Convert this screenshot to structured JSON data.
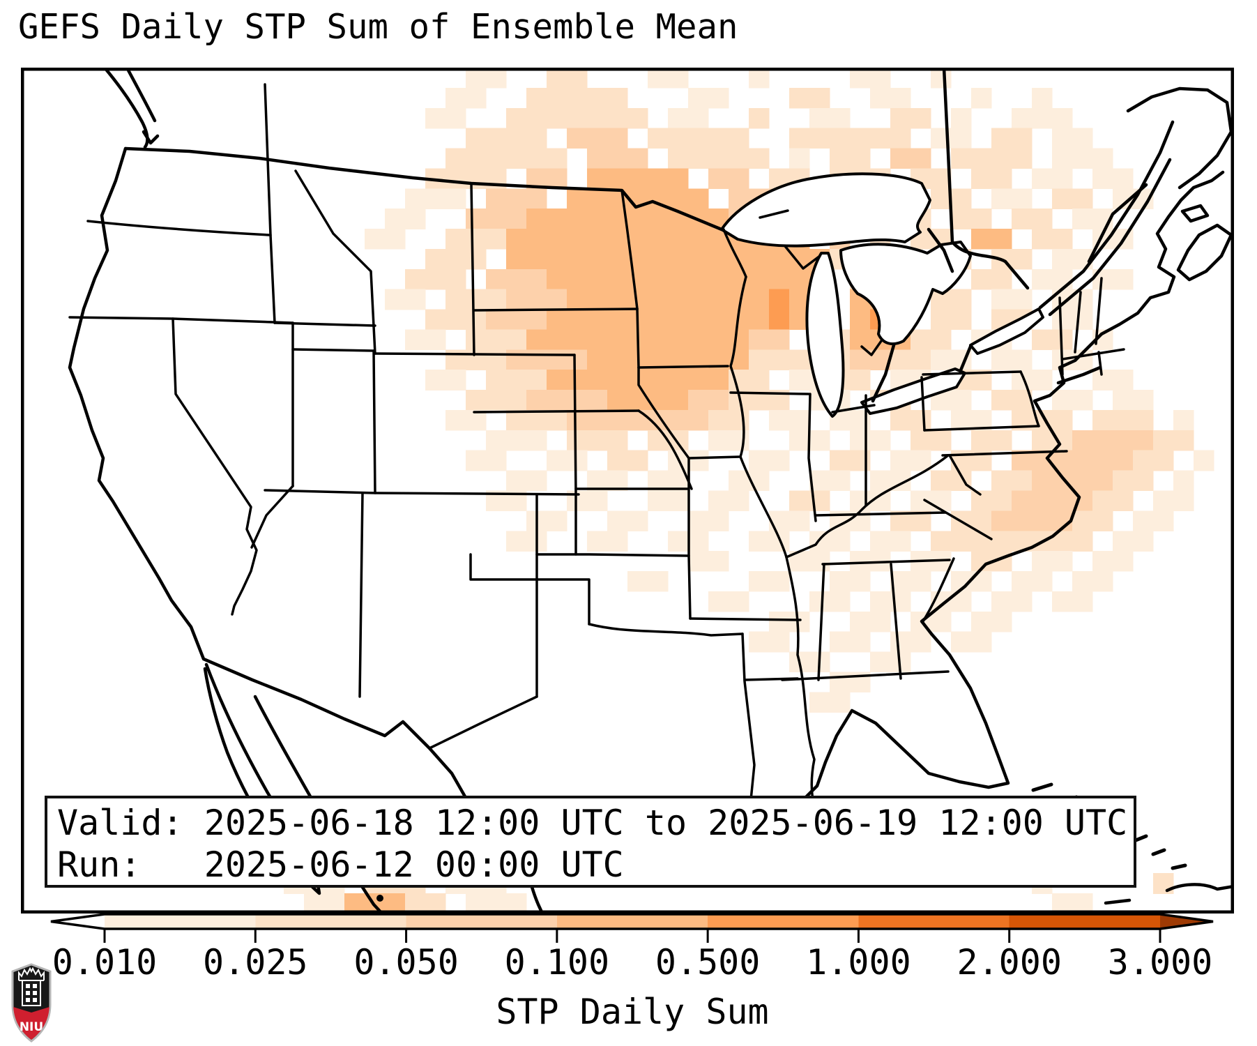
{
  "title": "GEFS Daily STP Sum of Ensemble Mean",
  "info_box": {
    "line1": "Valid: 2025-06-18 12:00 UTC to 2025-06-19 12:00 UTC",
    "line2": "Run:   2025-06-12 00:00 UTC"
  },
  "colorbar": {
    "label": "STP Daily Sum",
    "tick_labels": [
      "0.010",
      "0.025",
      "0.050",
      "0.100",
      "0.500",
      "1.000",
      "2.000",
      "3.000"
    ],
    "tick_values": [
      0.01,
      0.025,
      0.05,
      0.1,
      0.5,
      1.0,
      2.0,
      3.0
    ],
    "segment_colors": [
      "#fdeedd",
      "#fde2c7",
      "#fdd1ab",
      "#fdbb82",
      "#fd9c52",
      "#ee7422",
      "#d75606"
    ],
    "under_color": "#ffffff",
    "over_color": "#9e3a04",
    "extend": "both",
    "outline_color": "#000000"
  },
  "logo": {
    "text": "NIU",
    "shield_black": "#181818",
    "shield_red": "#cf1f2f",
    "border_silver": "#b5b5b5"
  },
  "chart_data": {
    "type": "heatmap",
    "title": "GEFS Daily STP Sum of Ensemble Mean",
    "colorbar_label": "STP Daily Sum",
    "region": "CONUS map (Lambert-conformal style), state borders black, Great Lakes white, Cuba gray",
    "levels": [
      0.01,
      0.025,
      0.05,
      0.1,
      0.5,
      1.0,
      2.0,
      3.0
    ],
    "level_colors": [
      "#fdeedd",
      "#fde2c7",
      "#fdd1ab",
      "#fdbb82",
      "#fd9c52",
      "#ee7422",
      "#d75606"
    ],
    "max_shown_bin": "0.100-0.500 (level 4) with isolated 0.500-1.000 (level 5) cells over WI/IL/upper-MI",
    "pattern_summary": "Maximum daily-sum STP over Minnesota, Wisconsin, Iowa and northern Illinois; lighter values across Dakotas, Michigan, Ontario/Quebec, Ohio Valley and a secondary offshore area east of the NC/VA coast; small area on Mexican Gulf-of-California coast at bottom edge",
    "grid": {
      "cols": 60,
      "rows": 42,
      "encoding": ". = below 0.010, digits 1-5 = color level index",
      "rows_encoded": [
        [
          "..........",
          "..........",
          "..11..22..",
          ".11...1...",
          ".11..1....",
          ".........."
        ],
        [
          "..........",
          "..........",
          ".11..22222",
          "...11...22",
          "..11...1..",
          "1........."
        ],
        [
          "..........",
          "..........",
          "11..222222",
          "2.11..2..1",
          "1..22.1..1",
          "11........"
        ],
        [
          "..........",
          "..........",
          "..2222.333",
          ".22222..22",
          "2222.11.22",
          ".11......."
        ],
        [
          "..........",
          "..........",
          ".222222.33",
          "3.22222.1.",
          "22.33.2222",
          ".111......"
        ],
        [
          "..........",
          "..........",
          "2222.33.44",
          "444.33.22.",
          "222.22.22.",
          "11.11....."
        ],
        [
          "..........",
          ".........1",
          "11.333.444",
          "4444.333.2",
          "2.33.22.11",
          ".22.11...."
        ],
        [
          "..........",
          "........11",
          "..33344444",
          "4444433322",
          "44.22.22.2",
          "2.11......"
        ],
        [
          "..........",
          ".......11.",
          ".222444444",
          "444444444.",
          "3.2.22.44.",
          "22.11....."
        ],
        [
          "..........",
          "..........",
          "222.444444",
          "4444444444",
          "2.11.22.22",
          ".11......."
        ],
        [
          "..........",
          ".........2",
          "22.3334444",
          "4444444444",
          ".22.11.22.",
          "11.11....."
        ],
        [
          "..........",
          "........11",
          ".222333444",
          "4444444544",
          ".444.22.11",
          ".11......."
        ],
        [
          "..........",
          "..........",
          "2223334444",
          "4444444544",
          ".454.22.22",
          ".11......."
        ],
        [
          "..........",
          ".........1",
          "1.22244444",
          "44444433.2",
          "244422.11.",
          "22.1......"
        ],
        [
          "..........",
          "..........",
          ".222333344",
          "4444442222",
          "2332211.11",
          ".11......."
        ],
        [
          "..........",
          "..........",
          "11.2224444",
          "4444422.11",
          "22.11.22.1",
          "1..11....."
        ],
        [
          "..........",
          "..........",
          "..22233334",
          "44433222.1",
          "1.22.11.22",
          ".11.11...."
        ],
        [
          "..........",
          "..........",
          ".11.222333",
          "333322.11.",
          "11.22.11.2",
          "22.222.1.."
        ],
        [
          "..........",
          "..........",
          "...111.222",
          ".22.11..11",
          ".11.22.22.",
          "22333322.."
        ],
        [
          "..........",
          "..........",
          "..11..11.2",
          "2.11..11..",
          "22.11.22.3",
          "3333322.1."
        ],
        [
          "..........",
          "..........",
          "....11..11",
          ".11..11..1",
          "1.11.22.22",
          "333322.1.."
        ],
        [
          "..........",
          "..........",
          "...11..11.",
          ".11.11..22",
          ".11.11.223",
          "33322.11.."
        ],
        [
          "..........",
          "..........",
          ".....11..1",
          "1..11..11.",
          "11.22.2233",
          "3322.11..."
        ],
        [
          "..........",
          "..........",
          "....11..11",
          "..11..11.1",
          "1.11.22222",
          "222.11...."
        ],
        [
          "..........",
          "..........",
          "..........",
          "...11...11",
          ".11.11.22.",
          "11.11....."
        ],
        [
          "..........",
          "..........",
          "..........",
          "11....11..",
          "11.11.11.1",
          "1.11......"
        ],
        [
          "..........",
          "..........",
          "..........",
          "....11...1",
          "1.11.11.11",
          ".11......."
        ],
        [
          "..........",
          "..........",
          "..........",
          ".......11.",
          ".11.11.11.",
          ".........."
        ],
        [
          "..........",
          "..........",
          "..........",
          "......11..",
          "11.11.11..",
          ".........."
        ],
        [
          "..........",
          "..........",
          "..........",
          "........11",
          "..11......",
          ".........."
        ],
        [
          "..........",
          "..........",
          "..........",
          "..........",
          "11........",
          ".........."
        ],
        [
          "..........",
          "..........",
          "..........",
          ".........1",
          "1.........",
          ".........."
        ],
        [
          "..........",
          "..........",
          "..........",
          "..........",
          "..........",
          ".........."
        ],
        [
          "..........",
          "..........",
          "..........",
          "..........",
          "..........",
          ".........."
        ],
        [
          "..........",
          "..........",
          "..........",
          "..........",
          "..........",
          ".........."
        ],
        [
          "..........",
          "..........",
          "..........",
          "..........",
          "..........",
          ".........."
        ],
        [
          "..........",
          "..........",
          "..........",
          "..........",
          "..........",
          ".........."
        ],
        [
          "..........",
          "..........",
          "..........",
          "..........",
          "..........",
          ".........."
        ],
        [
          "..........",
          "..........",
          "..........",
          "..........",
          "..........",
          ".........."
        ],
        [
          "..........",
          "....111.11",
          "1.........",
          "..........",
          "..........",
          "11........"
        ],
        [
          "..........",
          "...111.222",
          ".111......",
          "..........",
          "..........",
          "1.....2..."
        ],
        [
          "..........",
          "....114442",
          "2.111.....",
          "..........",
          "..........",
          ".11......."
        ]
      ]
    }
  }
}
